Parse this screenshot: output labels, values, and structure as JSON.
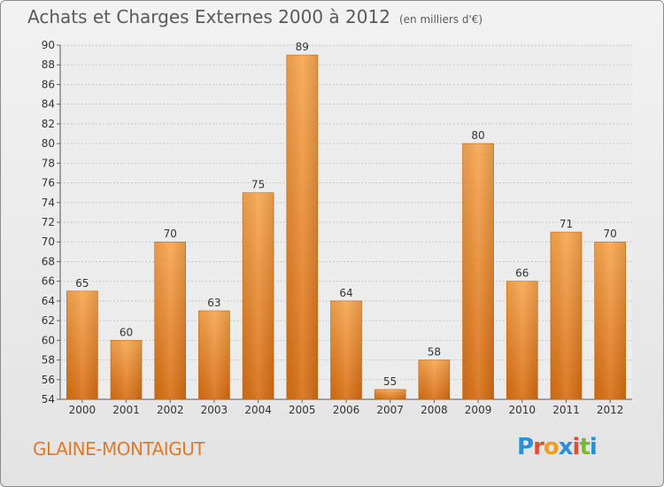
{
  "chart_data": {
    "type": "bar",
    "title": "Achats et Charges Externes 2000 à 2012",
    "subtitle": "(en milliers d'€)",
    "categories": [
      "2000",
      "2001",
      "2002",
      "2003",
      "2004",
      "2005",
      "2006",
      "2007",
      "2008",
      "2009",
      "2010",
      "2011",
      "2012"
    ],
    "values": [
      65,
      60,
      70,
      63,
      75,
      89,
      64,
      55,
      58,
      80,
      66,
      71,
      70
    ],
    "ylim": [
      54,
      90
    ],
    "yticks": [
      54,
      56,
      58,
      60,
      62,
      64,
      66,
      68,
      70,
      72,
      74,
      76,
      78,
      80,
      82,
      84,
      86,
      88,
      90
    ],
    "grid": true,
    "bar_color": "#f08a2c"
  },
  "footer": {
    "commune": "GLAINE-MONTAIGUT",
    "logo": "Proxiti"
  }
}
